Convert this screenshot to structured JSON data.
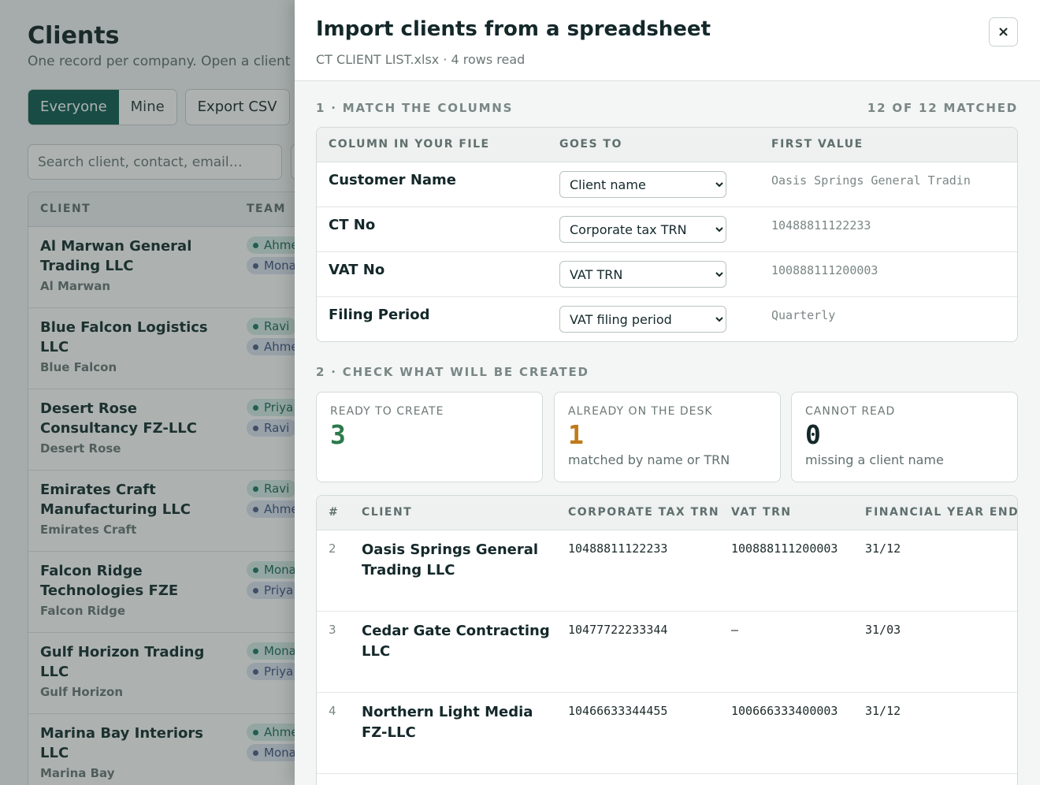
{
  "page": {
    "title": "Clients",
    "subtitle": "One record per company. Open a client to",
    "filters": [
      "Everyone",
      "Mine"
    ],
    "export_label": "Export CSV",
    "search_placeholder": "Search client, contact, email…",
    "table": {
      "headers": [
        "CLIENT",
        "TEAM"
      ],
      "rows": [
        {
          "name": "Al Marwan General Trading LLC",
          "short": "Al Marwan",
          "team": [
            "Ahmed",
            "Mona"
          ]
        },
        {
          "name": "Blue Falcon Logistics LLC",
          "short": "Blue Falcon",
          "team": [
            "Ravi",
            "Ahmed"
          ]
        },
        {
          "name": "Desert Rose Consultancy FZ-LLC",
          "short": "Desert Rose",
          "team": [
            "Priya",
            "Ravi"
          ]
        },
        {
          "name": "Emirates Craft Manufacturing LLC",
          "short": "Emirates Craft",
          "team": [
            "Ravi",
            "Ahmed"
          ]
        },
        {
          "name": "Falcon Ridge Technologies FZE",
          "short": "Falcon Ridge",
          "team": [
            "Mona",
            "Priya"
          ]
        },
        {
          "name": "Gulf Horizon Trading LLC",
          "short": "Gulf Horizon",
          "team": [
            "Mona",
            "Priya"
          ]
        },
        {
          "name": "Marina Bay Interiors LLC",
          "short": "Marina Bay",
          "team": [
            "Ahmed",
            "Mona"
          ]
        }
      ]
    }
  },
  "drawer": {
    "title": "Import clients from a spreadsheet",
    "subtitle": "CT CLIENT LIST.xlsx · 4 rows read",
    "close_label": "×",
    "section1": {
      "label": "1 · MATCH THE COLUMNS",
      "matched": "12 OF 12 MATCHED",
      "headers": [
        "COLUMN IN YOUR FILE",
        "GOES TO",
        "FIRST VALUE"
      ],
      "rows": [
        {
          "column": "Customer Name",
          "goes_to": "Client name",
          "first_value": "Oasis Springs General Tradin"
        },
        {
          "column": "CT No",
          "goes_to": "Corporate tax TRN",
          "first_value": "10488811122233"
        },
        {
          "column": "VAT No",
          "goes_to": "VAT TRN",
          "first_value": "100888111200003"
        },
        {
          "column": "Filing Period",
          "goes_to": "VAT filing period",
          "first_value": "Quarterly"
        }
      ]
    },
    "section2": {
      "label": "2 · CHECK WHAT WILL BE CREATED",
      "stats": [
        {
          "label": "READY TO CREATE",
          "value": "3",
          "note": "",
          "color": "#2b7a4b"
        },
        {
          "label": "ALREADY ON THE DESK",
          "value": "1",
          "note": "matched by name or TRN",
          "color": "#c07a1a"
        },
        {
          "label": "CANNOT READ",
          "value": "0",
          "note": "missing a client name",
          "color": "#14282a"
        }
      ],
      "preview_headers": [
        "#",
        "CLIENT",
        "CORPORATE TAX TRN",
        "VAT TRN",
        "FINANCIAL YEAR END"
      ],
      "preview_rows": [
        {
          "num": "2",
          "client": "Oasis Springs General Trading LLC",
          "ct_trn": "10488811122233",
          "vat_trn": "100888111200003",
          "fye": "31/12"
        },
        {
          "num": "3",
          "client": "Cedar Gate Contracting LLC",
          "ct_trn": "10477722233344",
          "vat_trn": "—",
          "fye": "31/03"
        },
        {
          "num": "4",
          "client": "Northern Light Media FZ-LLC",
          "ct_trn": "10466633344455",
          "vat_trn": "100666333400003",
          "fye": "31/12"
        }
      ]
    }
  }
}
